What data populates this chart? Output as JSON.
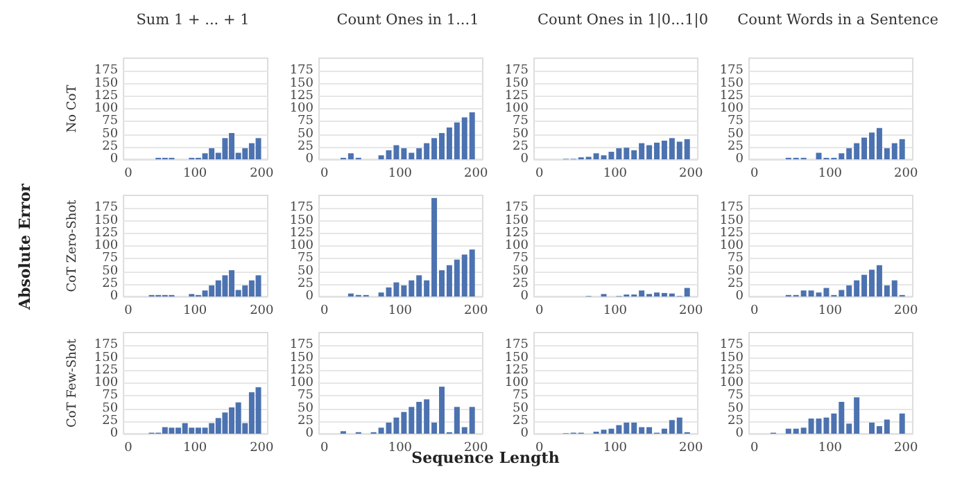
{
  "chart_data": [
    {
      "type": "bar",
      "title": "Sum 1 + ... + 1",
      "ylabel": "No CoT",
      "color": "#4c72b0",
      "x": [
        5,
        15,
        25,
        35,
        45,
        55,
        65,
        75,
        85,
        95,
        105,
        115,
        125,
        135,
        145,
        155,
        165,
        175,
        185,
        195
      ],
      "values": [
        0,
        0,
        0,
        0,
        3,
        3,
        3,
        0,
        0,
        3,
        3,
        12,
        22,
        13,
        42,
        52,
        13,
        22,
        32,
        42
      ],
      "xlim": [
        -7,
        209
      ],
      "ylim": [
        0,
        200
      ],
      "xticks": [
        0,
        100,
        200
      ],
      "yticks": [
        0,
        25,
        50,
        75,
        100,
        125,
        150,
        175
      ],
      "grid": "y"
    },
    {
      "type": "bar",
      "title": "Count Ones in 1...1",
      "color": "#4c72b0",
      "x": [
        5,
        15,
        25,
        35,
        45,
        55,
        65,
        75,
        85,
        95,
        105,
        115,
        125,
        135,
        145,
        155,
        165,
        175,
        185,
        195
      ],
      "values": [
        0,
        0,
        3,
        12,
        3,
        0,
        0,
        8,
        18,
        28,
        22,
        13,
        22,
        32,
        42,
        52,
        63,
        73,
        83,
        93
      ],
      "xlim": [
        -7,
        209
      ],
      "ylim": [
        0,
        200
      ],
      "xticks": [
        0,
        100,
        200
      ],
      "yticks": [
        0,
        25,
        50,
        75,
        100,
        125,
        150,
        175
      ],
      "grid": "y"
    },
    {
      "type": "bar",
      "title": "Count Ones in 1|0...1|0",
      "color": "#4c72b0",
      "x": [
        5,
        15,
        25,
        35,
        45,
        55,
        65,
        75,
        85,
        95,
        105,
        115,
        125,
        135,
        145,
        155,
        165,
        175,
        185,
        195
      ],
      "values": [
        0,
        0,
        0,
        1,
        1,
        4,
        5,
        12,
        8,
        15,
        22,
        23,
        18,
        32,
        28,
        33,
        37,
        42,
        35,
        40
      ],
      "xlim": [
        -7,
        209
      ],
      "ylim": [
        0,
        200
      ],
      "xticks": [
        0,
        100,
        200
      ],
      "yticks": [
        0,
        25,
        50,
        75,
        100,
        125,
        150,
        175
      ],
      "grid": "y"
    },
    {
      "type": "bar",
      "title": "Count Words in a Sentence",
      "color": "#4c72b0",
      "x": [
        5,
        15,
        25,
        35,
        45,
        55,
        65,
        75,
        85,
        95,
        105,
        115,
        125,
        135,
        145,
        155,
        165,
        175,
        185,
        195
      ],
      "values": [
        0,
        0,
        0,
        0,
        3,
        3,
        3,
        0,
        13,
        3,
        3,
        12,
        22,
        32,
        43,
        53,
        62,
        22,
        32,
        40
      ],
      "xlim": [
        -7,
        209
      ],
      "ylim": [
        0,
        200
      ],
      "xticks": [
        0,
        100,
        200
      ],
      "yticks": [
        0,
        25,
        50,
        75,
        100,
        125,
        150,
        175
      ],
      "grid": "y"
    },
    {
      "type": "bar",
      "ylabel": "CoT Zero-Shot",
      "annotations": [
        "Absolute Error"
      ],
      "color": "#4c72b0",
      "x": [
        5,
        15,
        25,
        35,
        45,
        55,
        65,
        75,
        85,
        95,
        105,
        115,
        125,
        135,
        145,
        155,
        165,
        175,
        185,
        195
      ],
      "values": [
        0,
        0,
        0,
        3,
        3,
        3,
        3,
        0,
        0,
        5,
        3,
        12,
        22,
        32,
        42,
        52,
        13,
        22,
        32,
        42
      ],
      "xlim": [
        -7,
        209
      ],
      "ylim": [
        0,
        200
      ],
      "xticks": [
        0,
        100,
        200
      ],
      "yticks": [
        0,
        25,
        50,
        75,
        100,
        125,
        150,
        175
      ],
      "grid": "y"
    },
    {
      "type": "bar",
      "color": "#4c72b0",
      "x": [
        5,
        15,
        25,
        35,
        45,
        55,
        65,
        75,
        85,
        95,
        105,
        115,
        125,
        135,
        145,
        155,
        165,
        175,
        185,
        195
      ],
      "values": [
        0,
        0,
        0,
        6,
        3,
        3,
        0,
        8,
        18,
        28,
        22,
        32,
        42,
        32,
        195,
        52,
        62,
        73,
        83,
        93
      ],
      "xlim": [
        -7,
        209
      ],
      "ylim": [
        0,
        200
      ],
      "xticks": [
        0,
        100,
        200
      ],
      "yticks": [
        0,
        25,
        50,
        75,
        100,
        125,
        150,
        175
      ],
      "grid": "y"
    },
    {
      "type": "bar",
      "color": "#4c72b0",
      "x": [
        5,
        15,
        25,
        35,
        45,
        55,
        65,
        75,
        85,
        95,
        105,
        115,
        125,
        135,
        145,
        155,
        165,
        175,
        185,
        195
      ],
      "values": [
        0,
        0,
        0,
        0,
        0,
        0,
        1,
        0,
        5,
        0,
        1,
        4,
        4,
        12,
        5,
        8,
        7,
        6,
        1,
        17
      ],
      "xlim": [
        -7,
        209
      ],
      "ylim": [
        0,
        200
      ],
      "xticks": [
        0,
        100,
        200
      ],
      "yticks": [
        0,
        25,
        50,
        75,
        100,
        125,
        150,
        175
      ],
      "grid": "y"
    },
    {
      "type": "bar",
      "color": "#4c72b0",
      "x": [
        5,
        15,
        25,
        35,
        45,
        55,
        65,
        75,
        85,
        95,
        105,
        115,
        125,
        135,
        145,
        155,
        165,
        175,
        185,
        195
      ],
      "values": [
        0,
        0,
        0,
        0,
        3,
        3,
        12,
        12,
        8,
        17,
        3,
        13,
        22,
        32,
        43,
        53,
        62,
        22,
        32,
        3
      ],
      "xlim": [
        -7,
        209
      ],
      "ylim": [
        0,
        200
      ],
      "xticks": [
        0,
        100,
        200
      ],
      "yticks": [
        0,
        25,
        50,
        75,
        100,
        125,
        150,
        175
      ],
      "grid": "y"
    },
    {
      "type": "bar",
      "ylabel": "CoT Few-Shot",
      "color": "#4c72b0",
      "x": [
        5,
        15,
        25,
        35,
        45,
        55,
        65,
        75,
        85,
        95,
        105,
        115,
        125,
        135,
        145,
        155,
        165,
        175,
        185,
        195
      ],
      "values": [
        0,
        0,
        0,
        2,
        2,
        13,
        12,
        12,
        21,
        12,
        12,
        12,
        21,
        31,
        42,
        52,
        62,
        21,
        82,
        92
      ],
      "xlim": [
        -7,
        209
      ],
      "ylim": [
        0,
        200
      ],
      "xticks": [
        0,
        100,
        200
      ],
      "yticks": [
        0,
        25,
        50,
        75,
        100,
        125,
        150,
        175
      ],
      "grid": "y"
    },
    {
      "type": "bar",
      "annotations": [
        "Sequence Length"
      ],
      "color": "#4c72b0",
      "x": [
        5,
        15,
        25,
        35,
        45,
        55,
        65,
        75,
        85,
        95,
        105,
        115,
        125,
        135,
        145,
        155,
        165,
        175,
        185,
        195
      ],
      "values": [
        0,
        0,
        5,
        0,
        3,
        0,
        3,
        12,
        22,
        32,
        43,
        53,
        63,
        68,
        22,
        93,
        3,
        53,
        13,
        53
      ],
      "xlim": [
        -7,
        209
      ],
      "ylim": [
        0,
        200
      ],
      "xticks": [
        0,
        100,
        200
      ],
      "yticks": [
        0,
        25,
        50,
        75,
        100,
        125,
        150,
        175
      ],
      "grid": "y"
    },
    {
      "type": "bar",
      "color": "#4c72b0",
      "x": [
        5,
        15,
        25,
        35,
        45,
        55,
        65,
        75,
        85,
        95,
        105,
        115,
        125,
        135,
        145,
        155,
        165,
        175,
        185,
        195
      ],
      "values": [
        0,
        0,
        0,
        1,
        2,
        2,
        0,
        4,
        8,
        10,
        17,
        22,
        22,
        13,
        13,
        2,
        10,
        27,
        32,
        3
      ],
      "xlim": [
        -7,
        209
      ],
      "ylim": [
        0,
        200
      ],
      "xticks": [
        0,
        100,
        200
      ],
      "yticks": [
        0,
        25,
        50,
        75,
        100,
        125,
        150,
        175
      ],
      "grid": "y"
    },
    {
      "type": "bar",
      "color": "#4c72b0",
      "x": [
        5,
        15,
        25,
        35,
        45,
        55,
        65,
        75,
        85,
        95,
        105,
        115,
        125,
        135,
        145,
        155,
        165,
        175,
        185,
        195
      ],
      "values": [
        0,
        0,
        2,
        0,
        10,
        10,
        12,
        30,
        30,
        32,
        40,
        63,
        20,
        72,
        null,
        22,
        15,
        28,
        null,
        40
      ],
      "xlim": [
        -7,
        209
      ],
      "ylim": [
        0,
        200
      ],
      "xticks": [
        0,
        100,
        200
      ],
      "yticks": [
        0,
        25,
        50,
        75,
        100,
        125,
        150,
        175
      ],
      "grid": "y"
    }
  ]
}
